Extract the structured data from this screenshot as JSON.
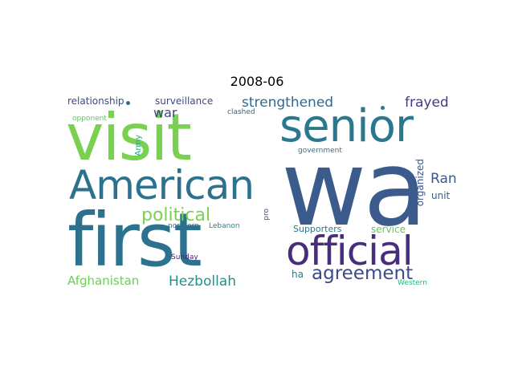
{
  "title": "2008-06",
  "words": [
    {
      "id": "wa",
      "text": "wa",
      "color": "#3b5b8c"
    },
    {
      "id": "visit",
      "text": "visit",
      "color": "#7ad151"
    },
    {
      "id": "first",
      "text": "first",
      "color": "#2c728e"
    },
    {
      "id": "senior",
      "text": "senior",
      "color": "#2a788e"
    },
    {
      "id": "American",
      "text": "American",
      "color": "#2c728e"
    },
    {
      "id": "official",
      "text": "official",
      "color": "#472d7b"
    },
    {
      "id": "agreement",
      "text": "agreement",
      "color": "#3e4989"
    },
    {
      "id": "political",
      "text": "political",
      "color": "#7ad151"
    },
    {
      "id": "Hezbollah",
      "text": "Hezbollah",
      "color": "#21908d"
    },
    {
      "id": "Afghanistan",
      "text": "Afghanistan",
      "color": "#6ece58"
    },
    {
      "id": "strengthened",
      "text": "strengthened",
      "color": "#31688e"
    },
    {
      "id": "frayed",
      "text": "frayed",
      "color": "#443a83"
    },
    {
      "id": "Ran",
      "text": "Ran",
      "color": "#38598c"
    },
    {
      "id": "war",
      "text": "war",
      "color": "#414487"
    },
    {
      "id": "relationship",
      "text": "relationship",
      "color": "#3e4a89"
    },
    {
      "id": "surveillance",
      "text": "surveillance",
      "color": "#3f4788"
    },
    {
      "id": "opponent",
      "text": "opponent",
      "color": "#5ec962"
    },
    {
      "id": "clashed",
      "text": "clashed",
      "color": "#31688e"
    },
    {
      "id": "Army",
      "text": "Army",
      "color": "#22a884"
    },
    {
      "id": "government",
      "text": "government",
      "color": "#2a788e"
    },
    {
      "id": "organized",
      "text": "organized",
      "color": "#3b528b"
    },
    {
      "id": "unit",
      "text": "unit",
      "color": "#355f8d"
    },
    {
      "id": "pro",
      "text": "pro",
      "color": "#3b528b"
    },
    {
      "id": "northern",
      "text": "northern",
      "color": "#2d708e"
    },
    {
      "id": "Lebanon",
      "text": "Lebanon",
      "color": "#24878e"
    },
    {
      "id": "Supporters",
      "text": "Supporters",
      "color": "#2a788e"
    },
    {
      "id": "service",
      "text": "service",
      "color": "#5ec962"
    },
    {
      "id": "Sunday",
      "text": "Sunday",
      "color": "#482677"
    },
    {
      "id": "ha",
      "text": "ha",
      "color": "#2a788e"
    },
    {
      "id": "Western",
      "text": "Western",
      "color": "#2eb37c"
    },
    {
      "id": "dot-1",
      "text": "",
      "color": "#2c728e"
    },
    {
      "id": "dot-2",
      "text": "",
      "color": "#2a788e"
    }
  ]
}
